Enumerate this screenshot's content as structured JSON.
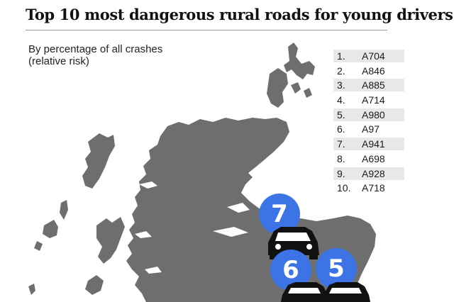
{
  "title": "Top 10 most dangerous rural roads for young drivers",
  "subtitle": {
    "line1": "By percentage of all crashes",
    "line2": "(relative risk)"
  },
  "ranking": [
    {
      "rank": "1.",
      "road": "A704"
    },
    {
      "rank": "2.",
      "road": "A846"
    },
    {
      "rank": "3.",
      "road": "A885"
    },
    {
      "rank": "4.",
      "road": "A714"
    },
    {
      "rank": "5.",
      "road": "A980"
    },
    {
      "rank": "6.",
      "road": "A97"
    },
    {
      "rank": "7.",
      "road": "A941"
    },
    {
      "rank": "8.",
      "road": "A698"
    },
    {
      "rank": "9.",
      "road": "A928"
    },
    {
      "rank": "10.",
      "road": "A718"
    }
  ],
  "markers": {
    "m7": "7",
    "m6": "6",
    "m5": "5"
  },
  "colors": {
    "land": "#6e6e6e",
    "marker": "#3c74e6",
    "car": "#111111"
  }
}
